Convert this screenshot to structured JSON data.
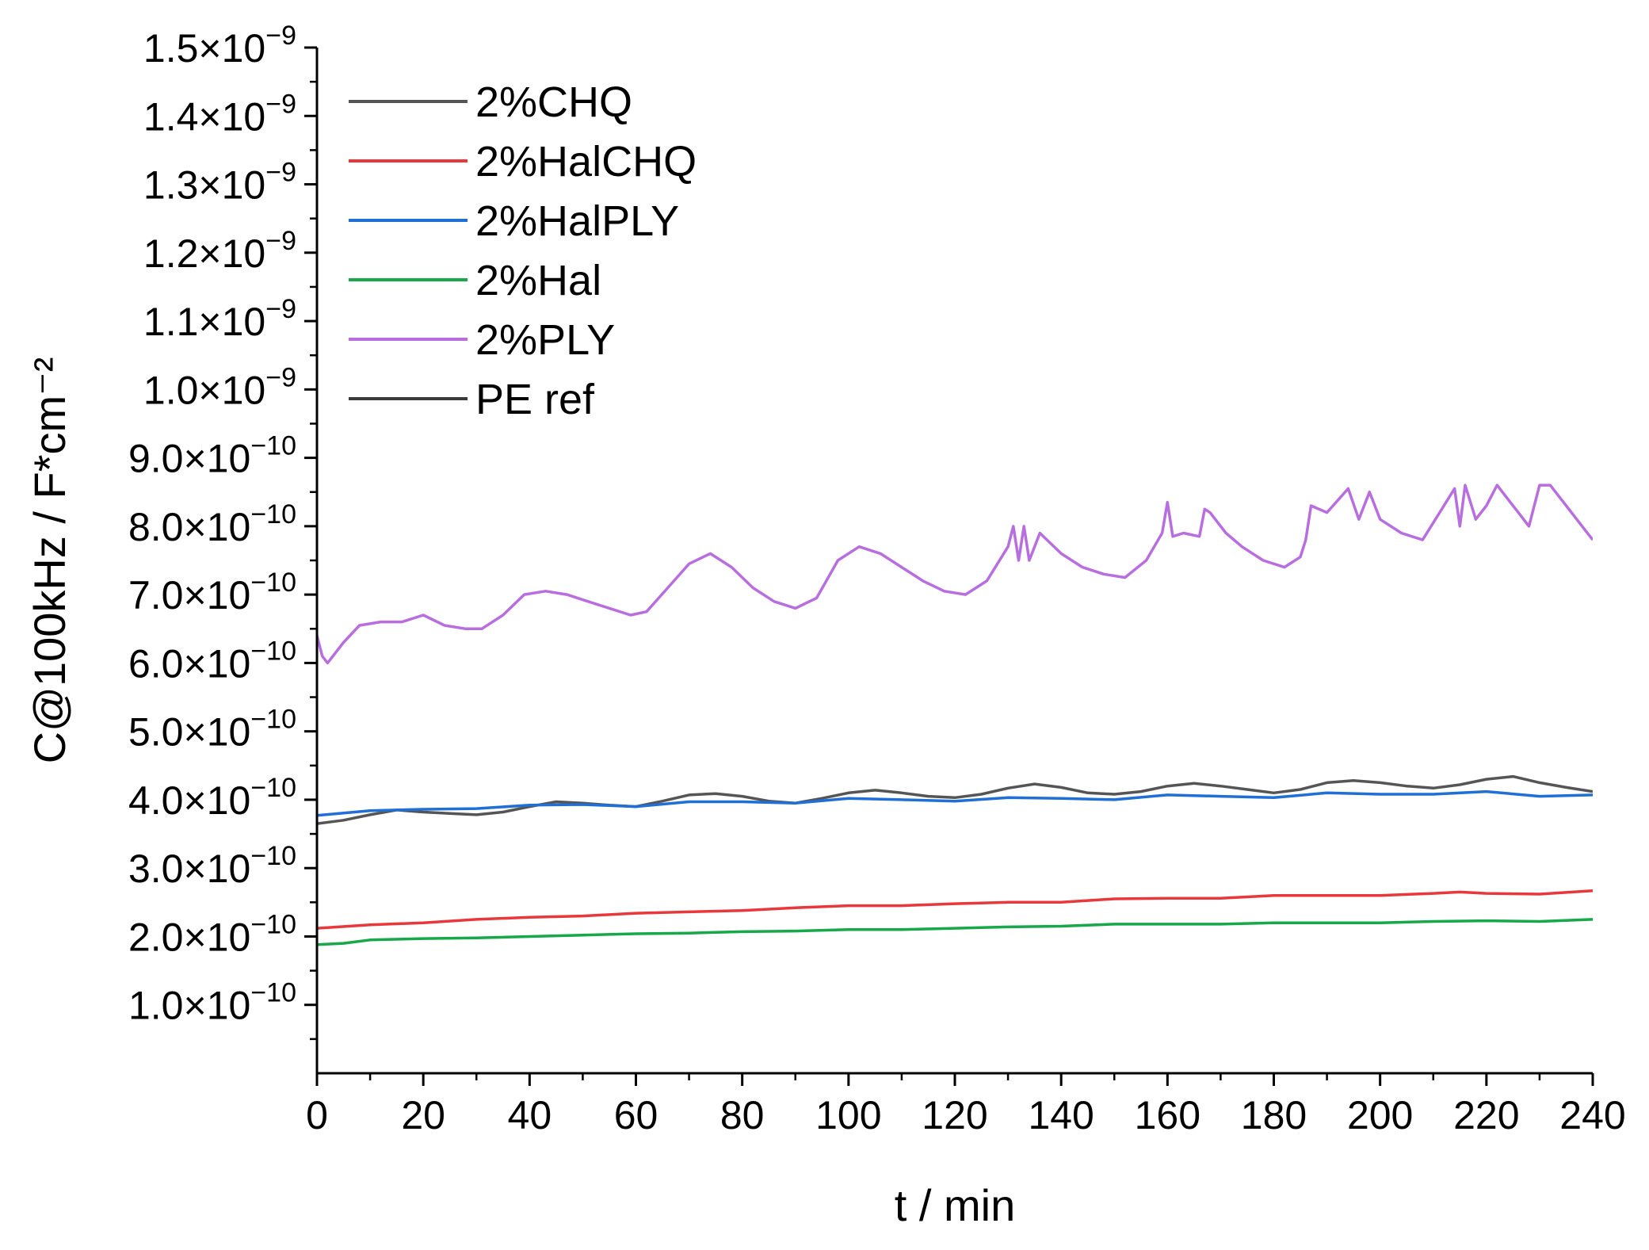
{
  "chart_data": {
    "type": "line",
    "title": "",
    "xlabel": "t / min",
    "ylabel": "C@100kHz / F*cm⁻²",
    "xlim": [
      0,
      240
    ],
    "ylim": [
      0,
      1.5e-09
    ],
    "x_ticks": [
      0,
      20,
      40,
      60,
      80,
      100,
      120,
      140,
      160,
      180,
      200,
      220,
      240
    ],
    "x_tick_labels": [
      "0",
      "20",
      "40",
      "60",
      "80",
      "100",
      "120",
      "140",
      "160",
      "180",
      "200",
      "220",
      "240"
    ],
    "y_ticks": [
      1e-10,
      2e-10,
      3e-10,
      4e-10,
      5e-10,
      6e-10,
      7e-10,
      8e-10,
      9e-10,
      1e-09,
      1.1e-09,
      1.2e-09,
      1.3e-09,
      1.4e-09,
      1.5e-09
    ],
    "y_tick_labels": [
      {
        "mantissa": "1.0×10",
        "exponent": "−10"
      },
      {
        "mantissa": "2.0×10",
        "exponent": "−10"
      },
      {
        "mantissa": "3.0×10",
        "exponent": "−10"
      },
      {
        "mantissa": "4.0×10",
        "exponent": "−10"
      },
      {
        "mantissa": "5.0×10",
        "exponent": "−10"
      },
      {
        "mantissa": "6.0×10",
        "exponent": "−10"
      },
      {
        "mantissa": "7.0×10",
        "exponent": "−10"
      },
      {
        "mantissa": "8.0×10",
        "exponent": "−10"
      },
      {
        "mantissa": "9.0×10",
        "exponent": "−10"
      },
      {
        "mantissa": "1.0×10",
        "exponent": "−9"
      },
      {
        "mantissa": "1.1×10",
        "exponent": "−9"
      },
      {
        "mantissa": "1.2×10",
        "exponent": "−9"
      },
      {
        "mantissa": "1.3×10",
        "exponent": "−9"
      },
      {
        "mantissa": "1.4×10",
        "exponent": "−9"
      },
      {
        "mantissa": "1.5×10",
        "exponent": "−9"
      }
    ],
    "grid": false,
    "legend_position": "top-left",
    "series": [
      {
        "name": "2%CHQ",
        "color": "#555555",
        "x": [
          0,
          5,
          10,
          15,
          20,
          25,
          30,
          35,
          40,
          45,
          50,
          55,
          60,
          65,
          70,
          75,
          80,
          85,
          90,
          95,
          100,
          105,
          110,
          115,
          120,
          125,
          130,
          135,
          140,
          145,
          150,
          155,
          160,
          165,
          170,
          175,
          180,
          185,
          190,
          195,
          200,
          205,
          210,
          215,
          220,
          225,
          230,
          235,
          240
        ],
        "y": [
          3.65e-10,
          3.7e-10,
          3.78e-10,
          3.85e-10,
          3.82e-10,
          3.8e-10,
          3.78e-10,
          3.82e-10,
          3.9e-10,
          3.97e-10,
          3.95e-10,
          3.92e-10,
          3.9e-10,
          3.98e-10,
          4.07e-10,
          4.09e-10,
          4.05e-10,
          3.98e-10,
          3.95e-10,
          4.02e-10,
          4.1e-10,
          4.14e-10,
          4.1e-10,
          4.05e-10,
          4.03e-10,
          4.08e-10,
          4.17e-10,
          4.23e-10,
          4.18e-10,
          4.1e-10,
          4.08e-10,
          4.12e-10,
          4.2e-10,
          4.24e-10,
          4.2e-10,
          4.15e-10,
          4.1e-10,
          4.15e-10,
          4.25e-10,
          4.28e-10,
          4.25e-10,
          4.2e-10,
          4.17e-10,
          4.22e-10,
          4.3e-10,
          4.34e-10,
          4.25e-10,
          4.18e-10,
          4.12e-10
        ]
      },
      {
        "name": "2%HalCHQ",
        "color": "#e8383c",
        "x": [
          0,
          10,
          20,
          30,
          40,
          50,
          60,
          70,
          80,
          90,
          100,
          110,
          120,
          130,
          140,
          150,
          160,
          170,
          180,
          190,
          200,
          210,
          215,
          220,
          230,
          240
        ],
        "y": [
          2.12e-10,
          2.17e-10,
          2.2e-10,
          2.25e-10,
          2.28e-10,
          2.3e-10,
          2.34e-10,
          2.36e-10,
          2.38e-10,
          2.42e-10,
          2.45e-10,
          2.45e-10,
          2.48e-10,
          2.5e-10,
          2.5e-10,
          2.55e-10,
          2.56e-10,
          2.56e-10,
          2.6e-10,
          2.6e-10,
          2.6e-10,
          2.63e-10,
          2.65e-10,
          2.63e-10,
          2.62e-10,
          2.67e-10
        ]
      },
      {
        "name": "2%HalPLY",
        "color": "#1f6fd6",
        "x": [
          0,
          10,
          20,
          30,
          40,
          50,
          60,
          70,
          80,
          90,
          100,
          110,
          120,
          130,
          140,
          150,
          160,
          170,
          180,
          190,
          200,
          210,
          220,
          230,
          240
        ],
        "y": [
          3.77e-10,
          3.84e-10,
          3.86e-10,
          3.87e-10,
          3.92e-10,
          3.93e-10,
          3.9e-10,
          3.97e-10,
          3.97e-10,
          3.95e-10,
          4.02e-10,
          4e-10,
          3.98e-10,
          4.03e-10,
          4.02e-10,
          4e-10,
          4.07e-10,
          4.05e-10,
          4.03e-10,
          4.1e-10,
          4.08e-10,
          4.08e-10,
          4.12e-10,
          4.05e-10,
          4.07e-10
        ]
      },
      {
        "name": "2%Hal",
        "color": "#17a84a",
        "x": [
          0,
          5,
          10,
          20,
          30,
          40,
          50,
          60,
          70,
          80,
          90,
          100,
          110,
          120,
          130,
          140,
          150,
          160,
          170,
          180,
          190,
          200,
          210,
          220,
          230,
          240
        ],
        "y": [
          1.88e-10,
          1.9e-10,
          1.95e-10,
          1.97e-10,
          1.98e-10,
          2e-10,
          2.02e-10,
          2.04e-10,
          2.05e-10,
          2.07e-10,
          2.08e-10,
          2.1e-10,
          2.1e-10,
          2.12e-10,
          2.14e-10,
          2.15e-10,
          2.18e-10,
          2.18e-10,
          2.18e-10,
          2.2e-10,
          2.2e-10,
          2.2e-10,
          2.22e-10,
          2.23e-10,
          2.22e-10,
          2.25e-10
        ]
      },
      {
        "name": "2%PLY",
        "color": "#b86ede",
        "x": [
          0,
          1,
          2,
          5,
          8,
          12,
          16,
          20,
          24,
          28,
          31,
          35,
          39,
          43,
          47,
          51,
          55,
          59,
          62,
          66,
          70,
          74,
          78,
          82,
          86,
          90,
          94,
          98,
          102,
          106,
          110,
          114,
          118,
          122,
          126,
          130,
          131,
          132,
          133,
          134,
          136,
          140,
          144,
          148,
          152,
          156,
          159,
          160,
          161,
          163,
          166,
          167,
          168,
          171,
          174,
          178,
          182,
          185,
          186,
          187,
          190,
          194,
          196,
          198,
          200,
          204,
          208,
          212,
          214,
          215,
          216,
          218,
          220,
          222,
          224,
          226,
          228,
          230,
          232,
          235,
          238,
          240
        ],
        "y": [
          6.4e-10,
          6.1e-10,
          6e-10,
          6.3e-10,
          6.55e-10,
          6.6e-10,
          6.6e-10,
          6.7e-10,
          6.55e-10,
          6.5e-10,
          6.5e-10,
          6.7e-10,
          7e-10,
          7.05e-10,
          7e-10,
          6.9e-10,
          6.8e-10,
          6.7e-10,
          6.75e-10,
          7.1e-10,
          7.45e-10,
          7.6e-10,
          7.4e-10,
          7.1e-10,
          6.9e-10,
          6.8e-10,
          6.95e-10,
          7.5e-10,
          7.7e-10,
          7.6e-10,
          7.4e-10,
          7.2e-10,
          7.05e-10,
          7e-10,
          7.2e-10,
          7.7e-10,
          8e-10,
          7.5e-10,
          8e-10,
          7.5e-10,
          7.9e-10,
          7.6e-10,
          7.4e-10,
          7.3e-10,
          7.25e-10,
          7.5e-10,
          7.9e-10,
          8.35e-10,
          7.85e-10,
          7.9e-10,
          7.85e-10,
          8.25e-10,
          8.2e-10,
          7.9e-10,
          7.7e-10,
          7.5e-10,
          7.4e-10,
          7.55e-10,
          7.8e-10,
          8.3e-10,
          8.2e-10,
          8.55e-10,
          8.1e-10,
          8.5e-10,
          8.1e-10,
          7.9e-10,
          7.8e-10,
          8.3e-10,
          8.55e-10,
          8e-10,
          8.6e-10,
          8.1e-10,
          8.3e-10,
          8.6e-10,
          8.4e-10,
          8.2e-10,
          8e-10,
          8.6e-10,
          8.6e-10,
          8.3e-10,
          8e-10,
          7.8e-10
        ]
      },
      {
        "name": "PE ref",
        "color": "#3a3a3a",
        "x": [],
        "y": []
      }
    ]
  }
}
